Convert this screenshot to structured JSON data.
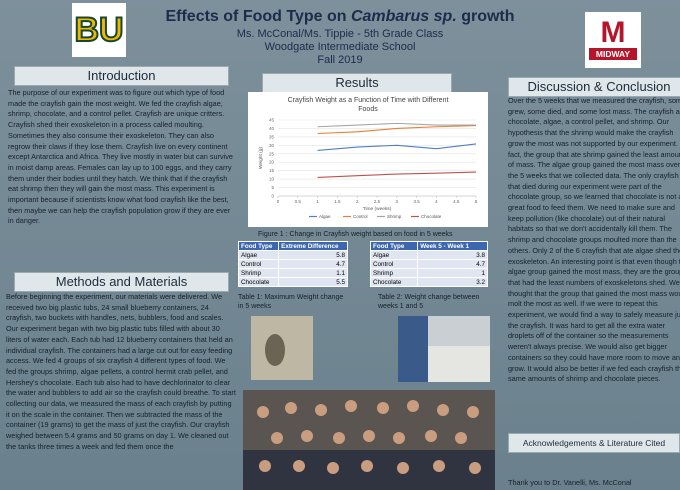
{
  "header": {
    "left_logo": "BU",
    "title_prefix": "Effects of Food Type on ",
    "title_italic": "Cambarus sp.",
    "title_suffix": " growth",
    "authors": "Ms. McConal/Ms. Tippie - 5th Grade Class",
    "school": "Woodgate Intermediate School",
    "term": "Fall 2019",
    "right_logo_letter": "M",
    "right_logo_text": "MIDWAY"
  },
  "introduction": {
    "heading": "Introduction",
    "text": "The purpose of our experiment was to figure out which type of food made the crayfish gain the most weight. We fed the crayfish algae, shrimp, chocolate, and a control pellet. Crayfish are unique critters. Crayfish shed their exoskeleton in a process called moulting. Sometimes they also consume their exoskeleton. They can also regrow their claws if they lose them. Crayfish live on every continent except Antarctica and Africa. They live mostly in water but can survive in moist damp areas. Females can lay up to 100 eggs, and they carry them under their bodies until they hatch. We think that if the crayfish eat shrimp then they will gain the most mass. This experiment is important because if scientists know what food crayfish like the best, then maybe we can help the crayfish population grow if they are ever in danger."
  },
  "methods": {
    "heading": "Methods and Materials",
    "text": "Before beginning the experiment, our materials were delivered. We received two big plastic tubs, 24 small blueberry containers, 24 crayfish, two buckets with handles, nets, bubblers, food and scales. Our experiment began with two big plastic tubs filled with about 30 liters of water each. Each tub had 12 blueberry containers that held an individual crayfish. The containers had a large cut out for easy feeding access. We fed 4 groups of six crayfish 4 different types of food. We fed the groups shrimp, algae pellets, a control hermit crab pellet, and Hershey's chocolate. Each tub also had to have dechlorinator to clear the water and bubblers to add air so the crayfish could breathe. To start collecting our data, we measured the mass of each crayfish by putting it on the scale in the container. Then we subtracted the mass of the container (19 grams) to get the mass of just the crayfish. Our crayfish weighed between 5.4 grams and 50 grams on day 1. We cleaned out the tanks three times a week and fed them once the"
  },
  "results": {
    "heading": "Results",
    "chart": {
      "type": "line",
      "title": "Crayfish Weight as a Function of Time with Different Foods",
      "x_label": "Time (weeks)",
      "y_label": "Weight (g)",
      "x": [
        1,
        2,
        3,
        4,
        5
      ],
      "xlim": [
        0,
        5
      ],
      "xticks": [
        0,
        0.5,
        1,
        1.5,
        2,
        2.5,
        3,
        3.5,
        4,
        4.5,
        5
      ],
      "ylim": [
        0,
        45
      ],
      "yticks": [
        0,
        5,
        10,
        15,
        20,
        25,
        30,
        35,
        40,
        45
      ],
      "grid": true,
      "legend": "bottom",
      "series": [
        {
          "name": "Algae",
          "color": "#4f7fc4",
          "values": [
            27,
            29,
            30,
            28,
            30.8
          ]
        },
        {
          "name": "Control",
          "color": "#ed7d31",
          "values": [
            37,
            38,
            40,
            41,
            41.7
          ]
        },
        {
          "name": "Shrimp",
          "color": "#a5a5a5",
          "values": [
            41,
            42,
            43,
            42,
            42
          ]
        },
        {
          "name": "Chocolate",
          "color": "#c0504d",
          "values": [
            11,
            12,
            13,
            13.5,
            14.2
          ]
        }
      ]
    },
    "figure_caption": "Figure 1 : Change in Crayfish weight based on food in 5 weeks",
    "table1": {
      "header": [
        "Food Type",
        "Extreme Difference"
      ],
      "rows": [
        [
          "Algae",
          "5.8"
        ],
        [
          "Control",
          "4.7"
        ],
        [
          "Shrimp",
          "1.1"
        ],
        [
          "Chocolate",
          "5.5"
        ]
      ],
      "caption": "Table 1: Maximum Weight change in 5 weeks"
    },
    "table2": {
      "header": [
        "Food Type",
        "Week 5 - Week 1"
      ],
      "rows": [
        [
          "Algae",
          "3.8"
        ],
        [
          "Control",
          "4.7"
        ],
        [
          "Shrimp",
          "1"
        ],
        [
          "Chocolate",
          "3.2"
        ]
      ],
      "caption": "Table 2: Weight change between weeks 1 and 5"
    }
  },
  "discussion": {
    "heading": "Discussion & Conclusion",
    "text": "Over the 5 weeks that we measured the crayfish, some grew, some died, and some lost mass. The crayfish ate chocolate, algae, a control pellet, and shrimp. Our hypothesis that the shrimp would make the crayfish grow the most was not supported by our experiment. In fact, the group that ate shrimp gained the least amount of mass. The algae group gained the most mass over the 5 weeks that we collected data. The only crayfish that died during our experiment were part of the chocolate group, so we learned that chocolate is not a great food to feed them. We need to make sure and keep pollution (like chocolate) out of their natural habitats so that we don't accidentally kill them. The shrimp and chocolate groups moulted more than the others. Only 2 of the 6 crayfish that ate algae shed their exoskeleton. An interesting point is that even though the algae group gained the most mass, they are the group that had the least numbers of exoskeletons shed. We thought that the group that gained the most mass would molt the most as well. If we were to repeat this experiment, we would find a way to safely measure just the crayfish. It was hard to get all the extra water droplets off of the container so the measurements weren't always precise. We would also get bigger containers so they could have more room to move and grow. It would also be better if we fed each crayfish the same amounts of shrimp and chocolate pieces."
  },
  "acknowledgements": {
    "heading": "Acknowledgements & Literature Cited",
    "text": "Thank you to Dr. Vanelli, Ms. McConal"
  }
}
